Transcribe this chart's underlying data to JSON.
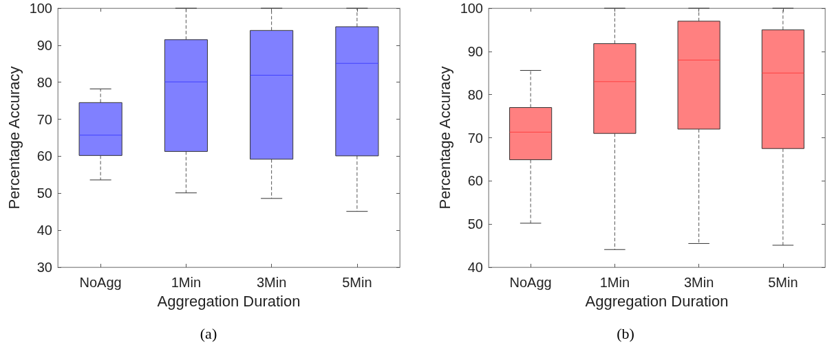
{
  "chart_data": [
    {
      "type": "box",
      "xlabel": "Aggregation Duration",
      "ylabel": "Percentage Accuracy",
      "categories": [
        "NoAgg",
        "1Min",
        "3Min",
        "5Min"
      ],
      "ylim": [
        30,
        100
      ],
      "yticks": [
        30,
        40,
        50,
        60,
        70,
        80,
        90,
        100
      ],
      "grid": false,
      "annotations": [
        "(a)"
      ],
      "series": [
        {
          "color": "#8080ff",
          "boxes": [
            {
              "low": 53.6,
              "q1": 60.2,
              "median": 65.7,
              "q3": 74.5,
              "high": 78.2
            },
            {
              "low": 50.1,
              "q1": 61.3,
              "median": 80.1,
              "q3": 91.5,
              "high": 100
            },
            {
              "low": 48.6,
              "q1": 59.2,
              "median": 81.9,
              "q3": 94,
              "high": 100
            },
            {
              "low": 45.1,
              "q1": 60.1,
              "median": 85.1,
              "q3": 95,
              "high": 100
            }
          ]
        }
      ]
    },
    {
      "type": "box",
      "xlabel": "Aggregation Duration",
      "ylabel": "Percentage Accuracy",
      "categories": [
        "NoAgg",
        "1Min",
        "3Min",
        "5Min"
      ],
      "ylim": [
        40,
        100
      ],
      "yticks": [
        40,
        50,
        60,
        70,
        80,
        90,
        100
      ],
      "grid": false,
      "annotations": [
        "(b)"
      ],
      "series": [
        {
          "color": "#ff8080",
          "boxes": [
            {
              "low": 50.2,
              "q1": 64.9,
              "median": 71.3,
              "q3": 77,
              "high": 85.6
            },
            {
              "low": 44.1,
              "q1": 71,
              "median": 83,
              "q3": 91.8,
              "high": 100
            },
            {
              "low": 45.5,
              "q1": 72,
              "median": 88,
              "q3": 97,
              "high": 100
            },
            {
              "low": 45.1,
              "q1": 67.5,
              "median": 85,
              "q3": 95,
              "high": 100
            }
          ]
        }
      ]
    }
  ]
}
